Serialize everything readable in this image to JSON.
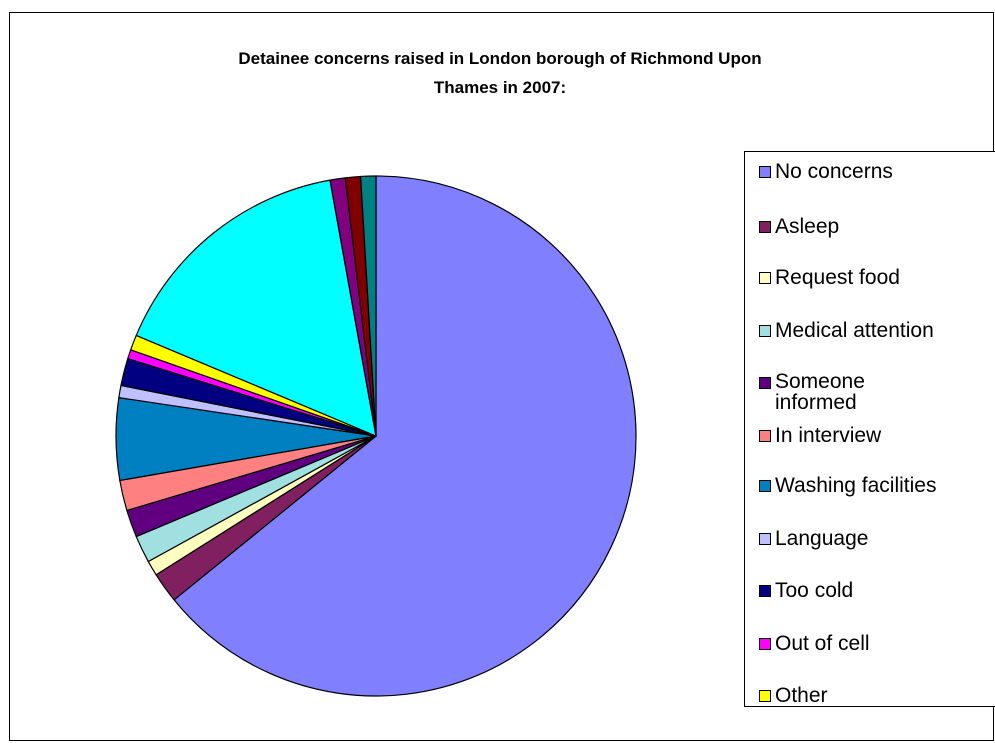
{
  "chart_data": {
    "type": "pie",
    "title": "Detainee concerns raised in London borough of Richmond Upon Thames in 2007:",
    "title_lines": [
      "Detainee concerns raised in London borough of Richmond Upon",
      "Thames in 2007:"
    ],
    "legend_position": "right",
    "slices": [
      {
        "label": "No concerns",
        "value": 68.0,
        "color": "#8080FF"
      },
      {
        "label": "Asleep",
        "value": 2.0,
        "color": "#802060"
      },
      {
        "label": "Request food",
        "value": 1.0,
        "color": "#FFFFC0"
      },
      {
        "label": "Medical attention",
        "value": 1.8,
        "color": "#A0E0E0"
      },
      {
        "label": "Someone informed",
        "value": 1.8,
        "color": "#600080"
      },
      {
        "label": "In interview",
        "value": 2.0,
        "color": "#FF8080"
      },
      {
        "label": "Washing facilities",
        "value": 5.4,
        "color": "#0080C0"
      },
      {
        "label": "Language",
        "value": 0.8,
        "color": "#C0C0FF"
      },
      {
        "label": "Too cold",
        "value": 1.8,
        "color": "#000080"
      },
      {
        "label": "Out of cell",
        "value": 0.6,
        "color": "#FF00FF"
      },
      {
        "label": "Other",
        "value": 1.0,
        "color": "#FFFF00"
      },
      {
        "label": "",
        "value": 16.8,
        "color": "#00FFFF"
      },
      {
        "label": "",
        "value": 1.0,
        "color": "#800080"
      },
      {
        "label": "",
        "value": 1.0,
        "color": "#800000"
      },
      {
        "label": "",
        "value": 1.0,
        "color": "#008080"
      }
    ]
  }
}
